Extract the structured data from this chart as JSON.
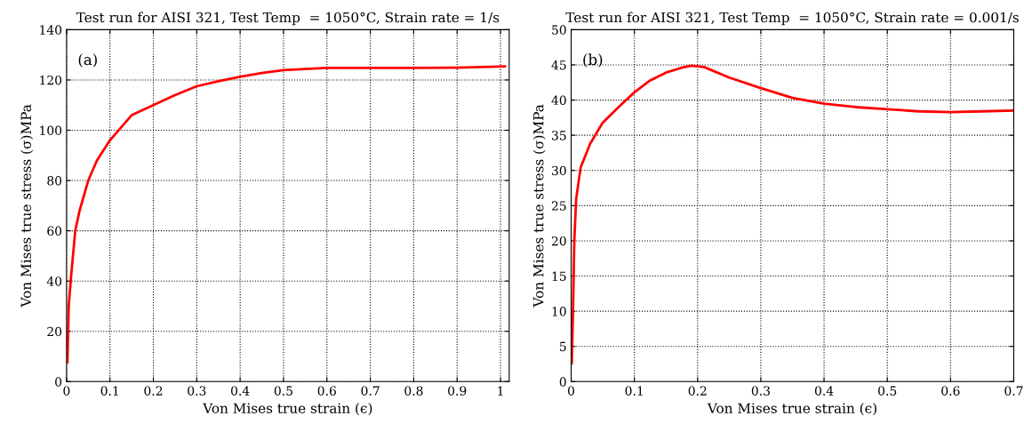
{
  "chart_data": [
    {
      "type": "line",
      "title": "Test run for AISI 321, Test Temp  = 1050°C, Strain rate = 1/s",
      "xlabel": "Von Mises true strain (ϵ)",
      "ylabel": "Von Mises true stress (σ)MPa",
      "annotations": [
        "(a)"
      ],
      "x": [
        0.002,
        0.005,
        0.01,
        0.02,
        0.03,
        0.05,
        0.07,
        0.1,
        0.15,
        0.2,
        0.25,
        0.3,
        0.35,
        0.4,
        0.45,
        0.5,
        0.6,
        0.7,
        0.8,
        0.9,
        1.01
      ],
      "series": [
        {
          "color": "#ff0000",
          "values": [
            7.7,
            30,
            41,
            60,
            68,
            80,
            88,
            96,
            106,
            110,
            114,
            117.5,
            119.5,
            121.3,
            122.8,
            123.9,
            124.8,
            124.8,
            124.8,
            124.9,
            125.4
          ]
        }
      ],
      "xlim": [
        0,
        1.02
      ],
      "xticks": [
        0,
        0.1,
        0.2,
        0.3,
        0.4,
        0.5,
        0.6,
        0.7,
        0.8,
        0.9,
        1
      ],
      "ylim": [
        0,
        140
      ],
      "yticks": [
        0,
        20,
        40,
        60,
        80,
        100,
        120,
        140
      ],
      "grid": true,
      "line_style": "solid",
      "marker": "none"
    },
    {
      "type": "line",
      "title": "Test run for AISI 321, Test Temp  = 1050°C, Strain rate = 0.001/s",
      "xlabel": "Von Mises true strain (ϵ)",
      "ylabel": "Von Mises true stress (σ)MPa",
      "annotations": [
        "(b)"
      ],
      "x": [
        0.001,
        0.003,
        0.005,
        0.008,
        0.015,
        0.03,
        0.05,
        0.075,
        0.1,
        0.125,
        0.15,
        0.175,
        0.19,
        0.21,
        0.25,
        0.3,
        0.35,
        0.4,
        0.45,
        0.5,
        0.55,
        0.6,
        0.65,
        0.7
      ],
      "series": [
        {
          "color": "#ff0000",
          "values": [
            2.6,
            10.3,
            20,
            26,
            30.4,
            33.8,
            36.8,
            39,
            41.1,
            42.8,
            43.9,
            44.6,
            44.9,
            44.7,
            43.2,
            41.7,
            40.3,
            39.5,
            39,
            38.7,
            38.4,
            38.3,
            38.4,
            38.5
          ]
        }
      ],
      "xlim": [
        0,
        0.7
      ],
      "xticks": [
        0,
        0.1,
        0.2,
        0.3,
        0.4,
        0.5,
        0.6,
        0.7
      ],
      "ylim": [
        0,
        50
      ],
      "yticks": [
        0,
        5,
        10,
        15,
        20,
        25,
        30,
        35,
        40,
        45,
        50
      ],
      "grid": true,
      "line_style": "solid",
      "marker": "none"
    }
  ]
}
